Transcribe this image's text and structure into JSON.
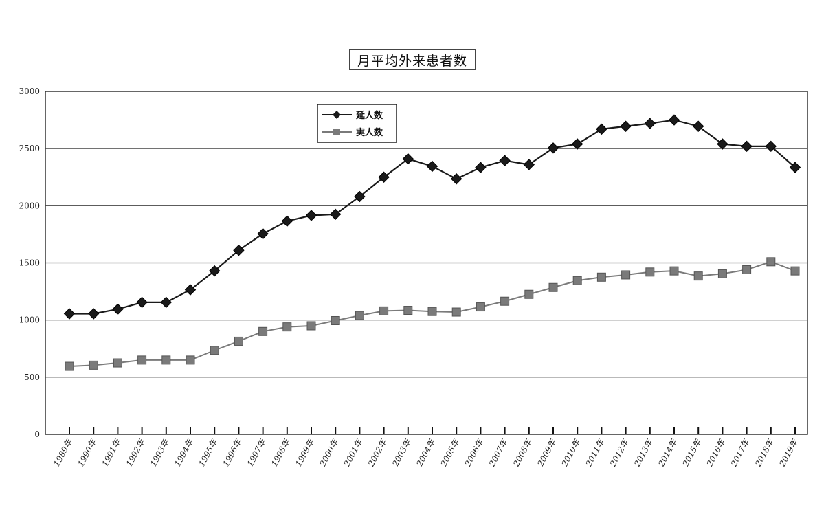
{
  "chart_data": {
    "type": "line",
    "title": "月平均外来患者数",
    "categories": [
      "1989年",
      "1990年",
      "1991年",
      "1992年",
      "1993年",
      "1994年",
      "1995年",
      "1996年",
      "1997年",
      "1998年",
      "1999年",
      "2000年",
      "2001年",
      "2002年",
      "2003年",
      "2004年",
      "2005年",
      "2006年",
      "2007年",
      "2008年",
      "2009年",
      "2010年",
      "2011年",
      "2012年",
      "2013年",
      "2014年",
      "2015年",
      "2016年",
      "2017年",
      "2018年",
      "2019年"
    ],
    "ylim": [
      0,
      3000
    ],
    "yticks": [
      "0",
      "500",
      "1000",
      "1500",
      "2000",
      "2500",
      "3000"
    ],
    "grid": true,
    "legend_position": "top-left",
    "series": [
      {
        "name": "延人数",
        "marker": "diamond",
        "color": "#1a1a1a",
        "values": [
          1055,
          1055,
          1095,
          1155,
          1155,
          1265,
          1430,
          1610,
          1755,
          1865,
          1915,
          1925,
          2080,
          2250,
          2410,
          2345,
          2235,
          2335,
          2395,
          2360,
          2505,
          2540,
          2670,
          2695,
          2720,
          2750,
          2695,
          2540,
          2520,
          2520,
          2335
        ]
      },
      {
        "name": "実人数",
        "marker": "square",
        "color": "#7a7a7a",
        "values": [
          595,
          605,
          625,
          650,
          650,
          650,
          735,
          815,
          900,
          940,
          950,
          995,
          1040,
          1080,
          1085,
          1075,
          1070,
          1115,
          1165,
          1225,
          1285,
          1345,
          1375,
          1395,
          1420,
          1430,
          1385,
          1405,
          1440,
          1510,
          1430
        ]
      }
    ]
  }
}
